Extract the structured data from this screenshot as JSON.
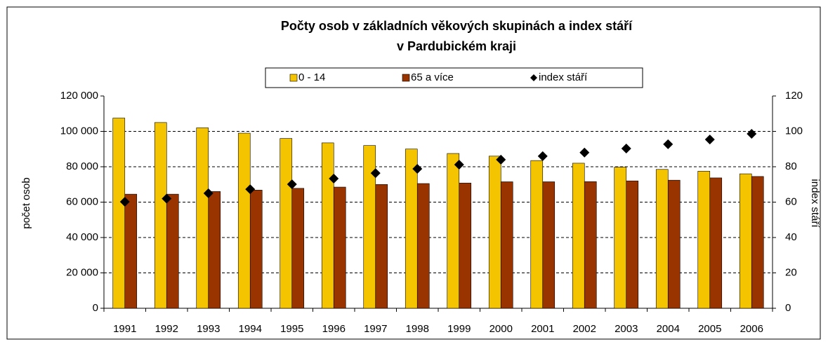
{
  "chart_data": {
    "type": "bar",
    "title": "Počty osob v základních věkových skupinách a index stáří",
    "subtitle": "v Pardubickém kraji",
    "y_label": "počet osob",
    "y2_label": "index stáří",
    "categories": [
      "1991",
      "1992",
      "1993",
      "1994",
      "1995",
      "1996",
      "1997",
      "1998",
      "1999",
      "2000",
      "2001",
      "2002",
      "2003",
      "2004",
      "2005",
      "2006"
    ],
    "series": [
      {
        "name": "0 - 14",
        "color": "#f5c400",
        "values": [
          107500,
          105000,
          102000,
          99000,
          96000,
          93500,
          92000,
          90000,
          87500,
          86000,
          83500,
          82000,
          79800,
          78500,
          77500,
          76000
        ]
      },
      {
        "name": "65 a více",
        "color": "#993300",
        "values": [
          64500,
          64500,
          66000,
          66800,
          67800,
          68500,
          70000,
          70500,
          70800,
          71500,
          71500,
          71600,
          72000,
          72400,
          73700,
          74500
        ]
      },
      {
        "name": "index stáří",
        "color": "#000000",
        "axis": "y2",
        "values": [
          60.2,
          62,
          65,
          67.3,
          70.1,
          73.3,
          76.4,
          78.8,
          81.2,
          84,
          86,
          88,
          90.3,
          92.7,
          95.4,
          98.6
        ]
      }
    ],
    "ylim": [
      0,
      120000
    ],
    "yticks": [
      0,
      {
        "value": 20000,
        "label": "20 000"
      },
      {
        "value": 40000,
        "label": "40 000"
      },
      {
        "value": 60000,
        "label": "60 000"
      },
      {
        "value": 80000,
        "label": "80 000"
      },
      {
        "value": 100000,
        "label": "100 000"
      },
      {
        "value": 120000,
        "label": "120 000"
      }
    ],
    "y2lim": [
      0,
      120
    ],
    "y2ticks": [
      0,
      20,
      40,
      60,
      80,
      100,
      120
    ],
    "grid": true,
    "legend": "top"
  }
}
